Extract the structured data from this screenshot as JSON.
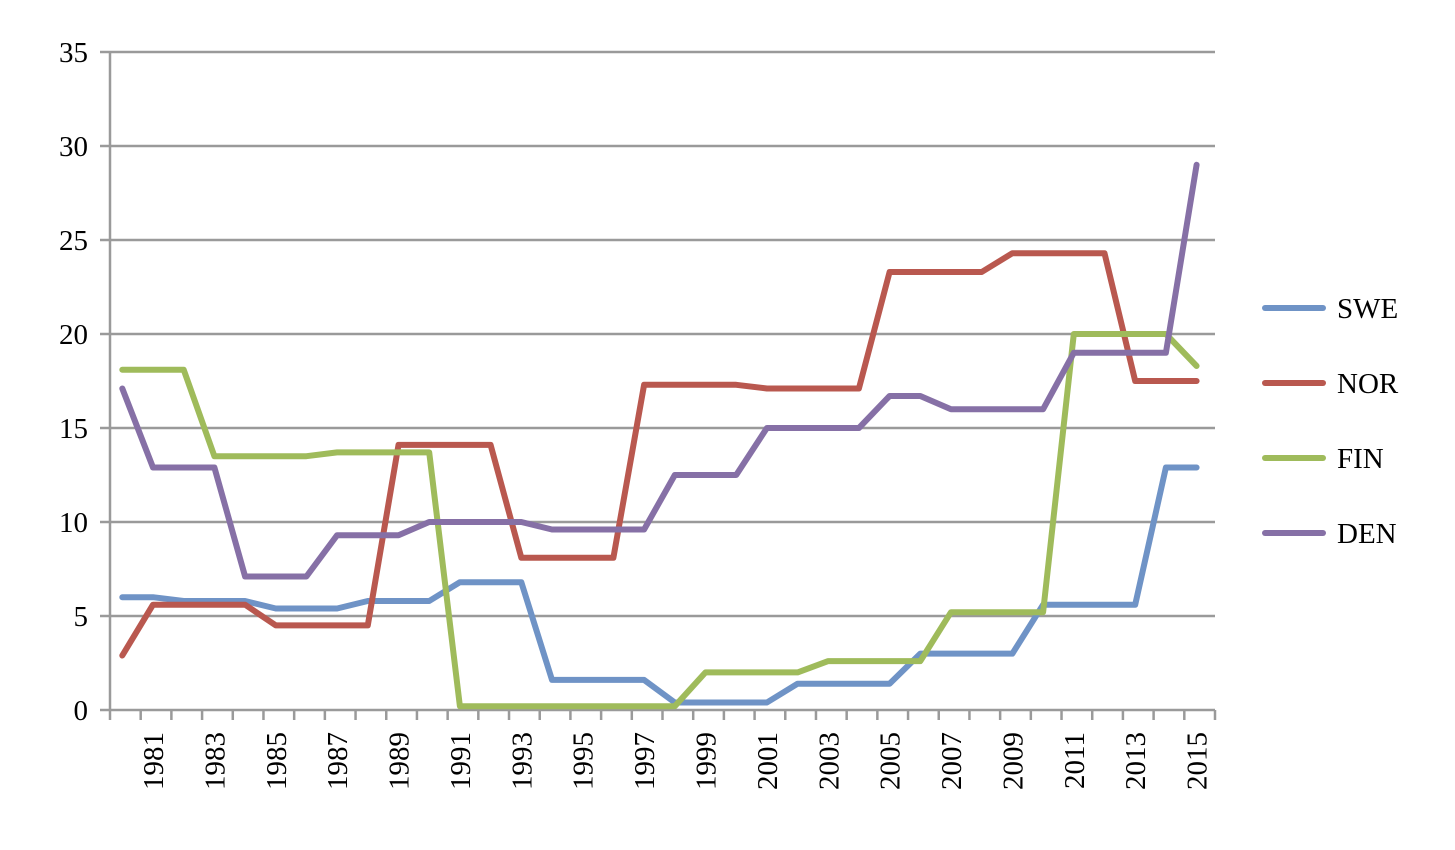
{
  "chart_data": {
    "type": "line",
    "title": "",
    "xlabel": "",
    "ylabel": "",
    "ylim": [
      0,
      35
    ],
    "yticks": [
      0,
      5,
      10,
      15,
      20,
      25,
      30,
      35
    ],
    "grid": true,
    "legend_position": "right",
    "x": [
      1980,
      1981,
      1982,
      1983,
      1984,
      1985,
      1986,
      1987,
      1988,
      1989,
      1990,
      1991,
      1992,
      1993,
      1994,
      1995,
      1996,
      1997,
      1998,
      1999,
      2000,
      2001,
      2002,
      2003,
      2004,
      2005,
      2006,
      2007,
      2008,
      2009,
      2010,
      2011,
      2012,
      2013,
      2014,
      2015
    ],
    "xtick_labels": [
      "1981",
      "1983",
      "1985",
      "1987",
      "1989",
      "1991",
      "1993",
      "1995",
      "1997",
      "1999",
      "2001",
      "2003",
      "2005",
      "2007",
      "2009",
      "2011",
      "2013",
      "2015"
    ],
    "series": [
      {
        "name": "SWE",
        "color": "#6f93c6",
        "values": [
          6,
          6,
          5.8,
          5.8,
          5.8,
          5.4,
          5.4,
          5.4,
          5.8,
          5.8,
          5.8,
          6.8,
          6.8,
          6.8,
          1.6,
          1.6,
          1.6,
          1.6,
          0.4,
          0.4,
          0.4,
          0.4,
          1.4,
          1.4,
          1.4,
          1.4,
          3,
          3,
          3,
          3,
          5.6,
          5.6,
          5.6,
          5.6,
          12.9,
          12.9
        ]
      },
      {
        "name": "NOR",
        "color": "#b9584f",
        "values": [
          2.9,
          5.6,
          5.6,
          5.6,
          5.6,
          4.5,
          4.5,
          4.5,
          4.5,
          14.1,
          14.1,
          14.1,
          14.1,
          8.1,
          8.1,
          8.1,
          8.1,
          17.3,
          17.3,
          17.3,
          17.3,
          17.1,
          17.1,
          17.1,
          17.1,
          23.3,
          23.3,
          23.3,
          23.3,
          24.3,
          24.3,
          24.3,
          24.3,
          17.5,
          17.5,
          17.5
        ]
      },
      {
        "name": "FIN",
        "color": "#9fbb5b",
        "values": [
          18.1,
          18.1,
          18.1,
          13.5,
          13.5,
          13.5,
          13.5,
          13.7,
          13.7,
          13.7,
          13.7,
          0.2,
          0.2,
          0.2,
          0.2,
          0.2,
          0.2,
          0.2,
          0.2,
          2,
          2,
          2,
          2,
          2.6,
          2.6,
          2.6,
          2.6,
          5.2,
          5.2,
          5.2,
          5.2,
          20,
          20,
          20,
          20,
          18.3
        ]
      },
      {
        "name": "DEN",
        "color": "#8670a6",
        "values": [
          17.1,
          12.9,
          12.9,
          12.9,
          7.1,
          7.1,
          7.1,
          9.3,
          9.3,
          9.3,
          10,
          10,
          10,
          10,
          9.6,
          9.6,
          9.6,
          9.6,
          12.5,
          12.5,
          12.5,
          15,
          15,
          15,
          15,
          16.7,
          16.7,
          16,
          16,
          16,
          16,
          19,
          19,
          19,
          19,
          29
        ]
      }
    ]
  }
}
